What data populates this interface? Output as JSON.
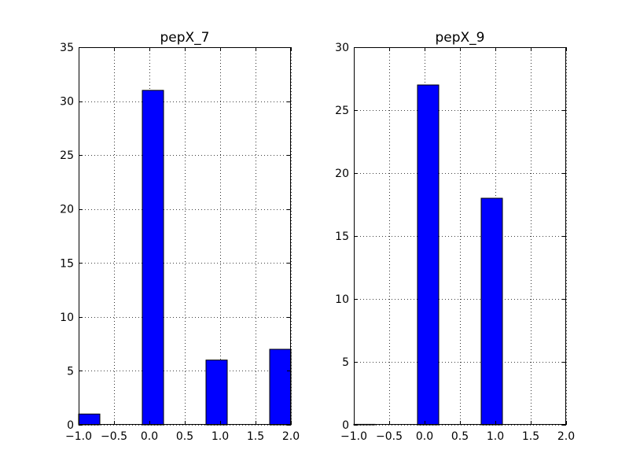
{
  "chart_data": [
    {
      "type": "bar",
      "title": "pepX_7",
      "xlabel": "",
      "ylabel": "",
      "xlim": [
        -1.0,
        2.0
      ],
      "ylim": [
        0,
        35
      ],
      "x_ticks": [
        -1.0,
        -0.5,
        0.0,
        0.5,
        1.0,
        1.5,
        2.0
      ],
      "x_tick_labels": [
        "−1.0",
        "−0.5",
        "0.0",
        "0.5",
        "1.0",
        "1.5",
        "2.0"
      ],
      "y_ticks": [
        0,
        5,
        10,
        15,
        20,
        25,
        30,
        35
      ],
      "y_tick_labels": [
        "0",
        "5",
        "10",
        "15",
        "20",
        "25",
        "30",
        "35"
      ],
      "grid": true,
      "bar_color": "#0000ff",
      "bins": [
        {
          "start": -1.0,
          "end": -0.7,
          "count": 1
        },
        {
          "start": -0.1,
          "end": 0.2,
          "count": 31
        },
        {
          "start": 0.8,
          "end": 1.1,
          "count": 6
        },
        {
          "start": 1.7,
          "end": 2.0,
          "count": 7
        }
      ]
    },
    {
      "type": "bar",
      "title": "pepX_9",
      "xlabel": "",
      "ylabel": "",
      "xlim": [
        -1.0,
        2.0
      ],
      "ylim": [
        0,
        30
      ],
      "x_ticks": [
        -1.0,
        -0.5,
        0.0,
        0.5,
        1.0,
        1.5,
        2.0
      ],
      "x_tick_labels": [
        "−1.0",
        "−0.5",
        "0.0",
        "0.5",
        "1.0",
        "1.5",
        "2.0"
      ],
      "y_ticks": [
        0,
        5,
        10,
        15,
        20,
        25,
        30
      ],
      "y_tick_labels": [
        "0",
        "5",
        "10",
        "15",
        "20",
        "25",
        "30"
      ],
      "grid": true,
      "bar_color": "#0000ff",
      "bins": [
        {
          "start": -1.0,
          "end": -0.7,
          "count": 0
        },
        {
          "start": -0.1,
          "end": 0.2,
          "count": 27
        },
        {
          "start": 0.8,
          "end": 1.1,
          "count": 18
        }
      ]
    }
  ]
}
